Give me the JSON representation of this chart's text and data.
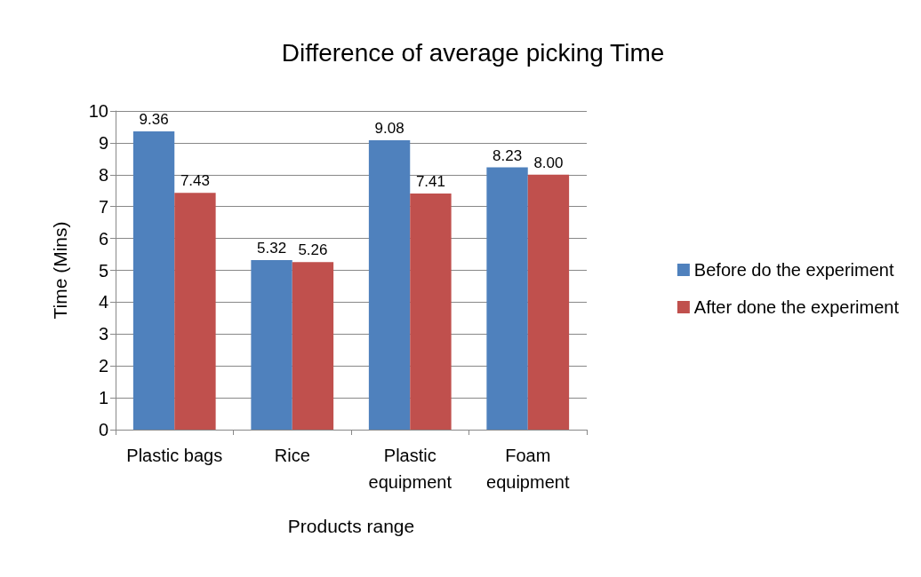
{
  "chart_data": {
    "type": "bar",
    "title": "Difference of average picking Time",
    "xlabel": "Products range",
    "ylabel": "Time (Mins)",
    "categories": [
      "Plastic bags",
      "Rice",
      "Plastic\nequipment",
      "Foam\nequipment"
    ],
    "series": [
      {
        "name": "Before do the experiment",
        "color": "#4f81bd",
        "values": [
          9.36,
          5.32,
          9.08,
          8.23
        ],
        "value_labels": [
          "9.36",
          "5.32",
          "9.08",
          "8.23"
        ]
      },
      {
        "name": "After done the experiment",
        "color": "#c0504d",
        "values": [
          7.43,
          5.26,
          7.41,
          8.0
        ],
        "value_labels": [
          "7.43",
          "5.26",
          "7.41",
          "8.00"
        ]
      }
    ],
    "ylim": [
      0,
      10
    ],
    "yticks": [
      0,
      1,
      2,
      3,
      4,
      5,
      6,
      7,
      8,
      9,
      10
    ],
    "grid": "y",
    "legend": "right"
  }
}
